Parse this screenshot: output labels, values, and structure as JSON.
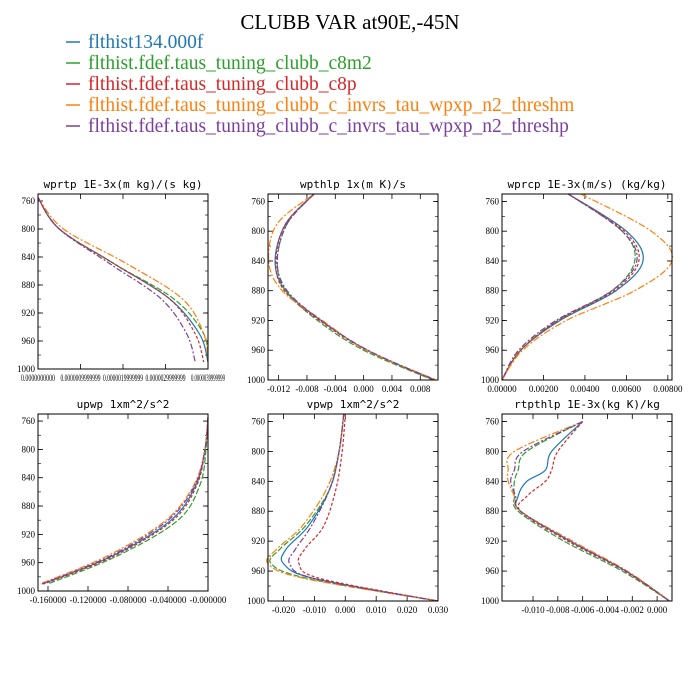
{
  "figure_title": "CLUBB VAR at90E,-45N",
  "legend": [
    {
      "label": "flthist134.000f",
      "color": "#1f77b4"
    },
    {
      "label": "flthist.fdef.taus_tuning_clubb_c8m2",
      "color": "#2ca02c"
    },
    {
      "label": "flthist.fdef.taus_tuning_clubb_c8p",
      "color": "#d62728"
    },
    {
      "label": "flthist.fdef.taus_tuning_clubb_c_invrs_tau_wpxp_n2_threshm",
      "color": "#ff7f0e"
    },
    {
      "label": "flthist.fdef.taus_tuning_clubb_c_invrs_tau_wpxp_n2_threshp",
      "color": "#7b3fa0"
    }
  ],
  "chart_data": [
    {
      "type": "line",
      "title": "wprtp  1E-3x(m kg)/(s kg)",
      "xlim": [
        0.0,
        4e-06
      ],
      "ylim": [
        1000,
        750
      ],
      "yticks": [
        "760",
        "800",
        "840",
        "880",
        "920",
        "960",
        "1000"
      ],
      "xticks": [
        "0.0000000000",
        "0.0000009999999",
        "0.0000019999999",
        "0.0000029999999",
        "0.0000039999999"
      ],
      "y": [
        755,
        800,
        850,
        900,
        950,
        990
      ],
      "series": [
        {
          "values": [
            0.0,
            5e-07,
            1.8e-06,
            3.1e-06,
            3.8e-06,
            4e-06
          ]
        },
        {
          "values": [
            0.0,
            5e-07,
            1.8e-06,
            3.2e-06,
            3.9e-06,
            4e-06
          ]
        },
        {
          "values": [
            0.0,
            5e-07,
            1.8e-06,
            3.1e-06,
            3.7e-06,
            3.9e-06
          ]
        },
        {
          "values": [
            0.0,
            6e-07,
            2.1e-06,
            3.4e-06,
            3.9e-06,
            4e-06
          ]
        },
        {
          "values": [
            0.0,
            5e-07,
            1.7e-06,
            2.9e-06,
            3.5e-06,
            3.7e-06
          ]
        }
      ]
    },
    {
      "type": "line",
      "title": "wpthlp  1x(m K)/s",
      "xlim": [
        -0.0135,
        0.0105
      ],
      "ylim": [
        1000,
        750
      ],
      "yticks": [
        "760",
        "800",
        "840",
        "880",
        "920",
        "960",
        "1000"
      ],
      "xticks": [
        "-0.012",
        "-0.008",
        "-0.004",
        "0.000",
        "0.004",
        "0.008"
      ],
      "y": [
        750,
        790,
        840,
        880,
        920,
        960,
        1000
      ],
      "series": [
        {
          "values": [
            -0.007,
            -0.011,
            -0.0125,
            -0.011,
            -0.006,
            0.0005,
            0.01
          ]
        },
        {
          "values": [
            -0.007,
            -0.0108,
            -0.0122,
            -0.011,
            -0.0065,
            0.0,
            0.0098
          ]
        },
        {
          "values": [
            -0.007,
            -0.011,
            -0.0124,
            -0.0112,
            -0.0062,
            0.0004,
            0.01
          ]
        },
        {
          "values": [
            -0.007,
            -0.0122,
            -0.0134,
            -0.0115,
            -0.0058,
            0.0004,
            0.0103
          ]
        },
        {
          "values": [
            -0.007,
            -0.0108,
            -0.0122,
            -0.0108,
            -0.006,
            0.0006,
            0.0101
          ]
        }
      ]
    },
    {
      "type": "line",
      "title": "wprcp  1E-3x(m/s) (kg/kg)",
      "xlim": [
        0.0,
        0.0082
      ],
      "ylim": [
        1000,
        750
      ],
      "yticks": [
        "760",
        "800",
        "840",
        "880",
        "920",
        "960",
        "1000"
      ],
      "xticks": [
        "0.00000",
        "0.00200",
        "0.00400",
        "0.00600",
        "0.00800"
      ],
      "y": [
        750,
        800,
        840,
        880,
        920,
        960,
        1000
      ],
      "series": [
        {
          "values": [
            0.0032,
            0.006,
            0.0068,
            0.0055,
            0.0028,
            0.0009,
            0.0
          ]
        },
        {
          "values": [
            0.0032,
            0.0058,
            0.0064,
            0.0053,
            0.0027,
            0.0009,
            0.0
          ]
        },
        {
          "values": [
            0.0032,
            0.0059,
            0.0066,
            0.0054,
            0.0027,
            0.0009,
            0.0
          ]
        },
        {
          "values": [
            0.0038,
            0.0072,
            0.0082,
            0.0064,
            0.0031,
            0.001,
            0.0
          ]
        },
        {
          "values": [
            0.0032,
            0.0058,
            0.0065,
            0.0053,
            0.0026,
            0.0008,
            0.0
          ]
        }
      ]
    },
    {
      "type": "line",
      "title": "upwp  1xm^2/s^2",
      "xlim": [
        -0.17,
        0.0
      ],
      "ylim": [
        1000,
        750
      ],
      "yticks": [
        "760",
        "800",
        "840",
        "880",
        "920",
        "960",
        "1000"
      ],
      "xticks": [
        "-0.160000",
        "-0.120000",
        "-0.080000",
        "-0.040000",
        "-0.000000"
      ],
      "y": [
        755,
        800,
        850,
        900,
        950,
        990
      ],
      "series": [
        {
          "values": [
            0.0,
            -0.003,
            -0.012,
            -0.037,
            -0.095,
            -0.165
          ]
        },
        {
          "values": [
            0.0,
            -0.002,
            -0.008,
            -0.03,
            -0.09,
            -0.16
          ]
        },
        {
          "values": [
            0.0,
            -0.003,
            -0.011,
            -0.035,
            -0.093,
            -0.164
          ]
        },
        {
          "values": [
            0.0,
            -0.003,
            -0.014,
            -0.042,
            -0.1,
            -0.168
          ]
        },
        {
          "values": [
            0.0,
            -0.003,
            -0.013,
            -0.04,
            -0.097,
            -0.166
          ]
        }
      ]
    },
    {
      "type": "line",
      "title": "vpwp  1xm^2/s^2",
      "xlim": [
        -0.025,
        0.03
      ],
      "ylim": [
        1000,
        750
      ],
      "yticks": [
        "760",
        "800",
        "840",
        "880",
        "920",
        "960",
        "1000"
      ],
      "xticks": [
        "-0.020",
        "-0.010",
        "0.000",
        "0.010",
        "0.020",
        "0.030"
      ],
      "y": [
        750,
        800,
        850,
        900,
        930,
        950,
        970,
        1000
      ],
      "series": [
        {
          "values": [
            -0.0005,
            -0.002,
            -0.005,
            -0.012,
            -0.019,
            -0.02,
            -0.01,
            0.03
          ]
        },
        {
          "values": [
            -0.0005,
            -0.002,
            -0.005,
            -0.013,
            -0.021,
            -0.024,
            -0.012,
            0.03
          ]
        },
        {
          "values": [
            0.0,
            -0.001,
            -0.003,
            -0.007,
            -0.013,
            -0.015,
            -0.008,
            0.03
          ]
        },
        {
          "values": [
            -0.0005,
            -0.002,
            -0.006,
            -0.014,
            -0.022,
            -0.025,
            -0.013,
            0.03
          ]
        },
        {
          "values": [
            -0.0005,
            -0.002,
            -0.005,
            -0.011,
            -0.016,
            -0.018,
            -0.01,
            0.03
          ]
        }
      ]
    },
    {
      "type": "line",
      "title": "rtpthlp  1E-3x(kg K)/kg",
      "xlim": [
        -0.0125,
        0.0012
      ],
      "ylim": [
        1000,
        750
      ],
      "yticks": [
        "760",
        "800",
        "840",
        "880",
        "920",
        "960",
        "1000"
      ],
      "xticks": [
        "-0.010",
        "-0.008",
        "-0.006",
        "-0.004",
        "-0.002",
        "0.000"
      ],
      "y": [
        760,
        800,
        825,
        840,
        860,
        880,
        920,
        960,
        1000
      ],
      "series": [
        {
          "values": [
            -0.006,
            -0.0085,
            -0.009,
            -0.0105,
            -0.0112,
            -0.011,
            -0.007,
            -0.0025,
            0.001
          ]
        },
        {
          "values": [
            -0.006,
            -0.0105,
            -0.0112,
            -0.0115,
            -0.0115,
            -0.0112,
            -0.0075,
            -0.0028,
            0.001
          ]
        },
        {
          "values": [
            -0.006,
            -0.008,
            -0.0085,
            -0.009,
            -0.0105,
            -0.011,
            -0.0072,
            -0.0026,
            0.001
          ]
        },
        {
          "values": [
            -0.006,
            -0.0115,
            -0.012,
            -0.012,
            -0.0115,
            -0.011,
            -0.0068,
            -0.0024,
            0.001
          ]
        },
        {
          "values": [
            -0.006,
            -0.0108,
            -0.0115,
            -0.0118,
            -0.0114,
            -0.011,
            -0.007,
            -0.0025,
            0.001
          ]
        }
      ]
    }
  ]
}
